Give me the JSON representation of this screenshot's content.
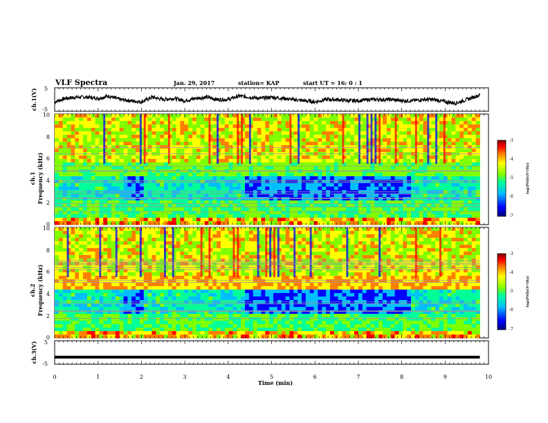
{
  "header": {
    "title": "VLF Spectra",
    "date": "Jan. 29, 2017",
    "station": "station= KAP",
    "start": "start  UT =   16: 0  : 1"
  },
  "colors": {
    "spectrogram_scale": [
      "#00007f",
      "#0000ff",
      "#00bfff",
      "#00ff99",
      "#7fff00",
      "#ffff00",
      "#ff7f00",
      "#ff0000",
      "#7f0000"
    ],
    "trace": "#000000"
  },
  "chart_data": [
    {
      "id": "ch1-waveform",
      "type": "line",
      "ylabel": "ch.1(V)",
      "ylim": [
        -5,
        5
      ],
      "y_ticks": [
        "5",
        "-5"
      ],
      "xlim": [
        0,
        10
      ],
      "series": [
        {
          "x": [
            0,
            0.25,
            0.5,
            0.75,
            1.0,
            1.25,
            1.5,
            1.75,
            2.0,
            2.25,
            2.5,
            2.75,
            3.0,
            3.25,
            3.5,
            3.75,
            4.0,
            4.25,
            4.5,
            4.75,
            5.0,
            5.25,
            5.5,
            5.75,
            6.0,
            6.25,
            6.5,
            6.75,
            7.0,
            7.25,
            7.5,
            7.75,
            8.0,
            8.25,
            8.5,
            8.75,
            9.0,
            9.25,
            9.5,
            9.8
          ],
          "y": [
            -1,
            0.5,
            1,
            1,
            0.5,
            1.5,
            0,
            -0.5,
            -1,
            1,
            0,
            0.5,
            -0.5,
            0.5,
            1,
            0,
            0,
            1.5,
            1,
            0.5,
            1,
            0.5,
            0,
            -0.5,
            -1,
            0,
            0,
            -0.5,
            -0.5,
            0,
            0,
            0,
            -0.5,
            -0.5,
            0,
            0,
            -1,
            -1.5,
            0,
            2
          ]
        }
      ]
    },
    {
      "id": "ch1-spectrogram",
      "type": "heatmap",
      "ylabel": "ch.1\nFrequency  (kHz)",
      "ylim": [
        0,
        10
      ],
      "y_ticks": [
        "0",
        "2",
        "4",
        "6",
        "8",
        "10"
      ],
      "xlim": [
        0,
        10
      ],
      "colorbar": {
        "label": "log(PSD)(V²/Hz)",
        "range": [
          -7,
          -3
        ],
        "ticks": [
          "-3",
          "-4",
          "-5",
          "-6",
          "-7"
        ]
      }
    },
    {
      "id": "ch2-spectrogram",
      "type": "heatmap",
      "ylabel": "ch.2\nFrequency  (kHz)",
      "ylim": [
        0,
        10
      ],
      "y_ticks": [
        "0",
        "2",
        "4",
        "6",
        "8",
        "10"
      ],
      "xlim": [
        0,
        10
      ],
      "colorbar": {
        "label": "log(PSD)(V²/Hz)",
        "range": [
          -7,
          -3
        ],
        "ticks": [
          "-3",
          "-4",
          "-5",
          "-6",
          "-7"
        ]
      }
    },
    {
      "id": "ch3-waveform",
      "type": "line",
      "ylabel": "ch.3(V)",
      "ylim": [
        -5,
        5
      ],
      "y_ticks": [
        "5",
        "-5"
      ],
      "xlim": [
        0,
        10
      ],
      "series": [
        {
          "x": [
            0,
            9.8
          ],
          "y": [
            -2,
            -2
          ]
        }
      ]
    }
  ],
  "xaxis": {
    "label": "Time  (min)",
    "ticks": [
      "0",
      "1",
      "2",
      "3",
      "4",
      "5",
      "6",
      "7",
      "8",
      "9",
      "10"
    ]
  }
}
